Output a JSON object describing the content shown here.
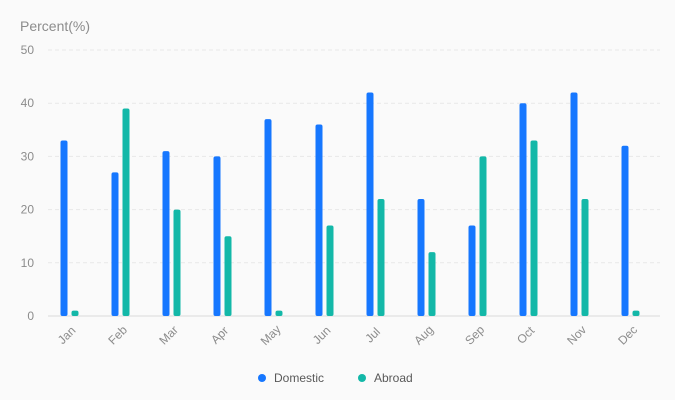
{
  "chart_data": {
    "type": "bar",
    "ylabel": "Percent(%)",
    "ylim": [
      0,
      50
    ],
    "yticks": [
      0,
      10,
      20,
      30,
      40,
      50
    ],
    "grid": true,
    "legend_position": "bottom",
    "categories": [
      "Jan",
      "Feb",
      "Mar",
      "Apr",
      "May",
      "Jun",
      "Jul",
      "Aug",
      "Sep",
      "Oct",
      "Nov",
      "Dec"
    ],
    "series": [
      {
        "name": "Domestic",
        "color": "#1677ff",
        "values": [
          33,
          27,
          31,
          30,
          37,
          36,
          42,
          22,
          17,
          40,
          42,
          32
        ]
      },
      {
        "name": "Abroad",
        "color": "#13b8a8",
        "values": [
          1,
          39,
          20,
          15,
          1,
          17,
          22,
          12,
          30,
          33,
          22,
          1
        ]
      }
    ]
  }
}
